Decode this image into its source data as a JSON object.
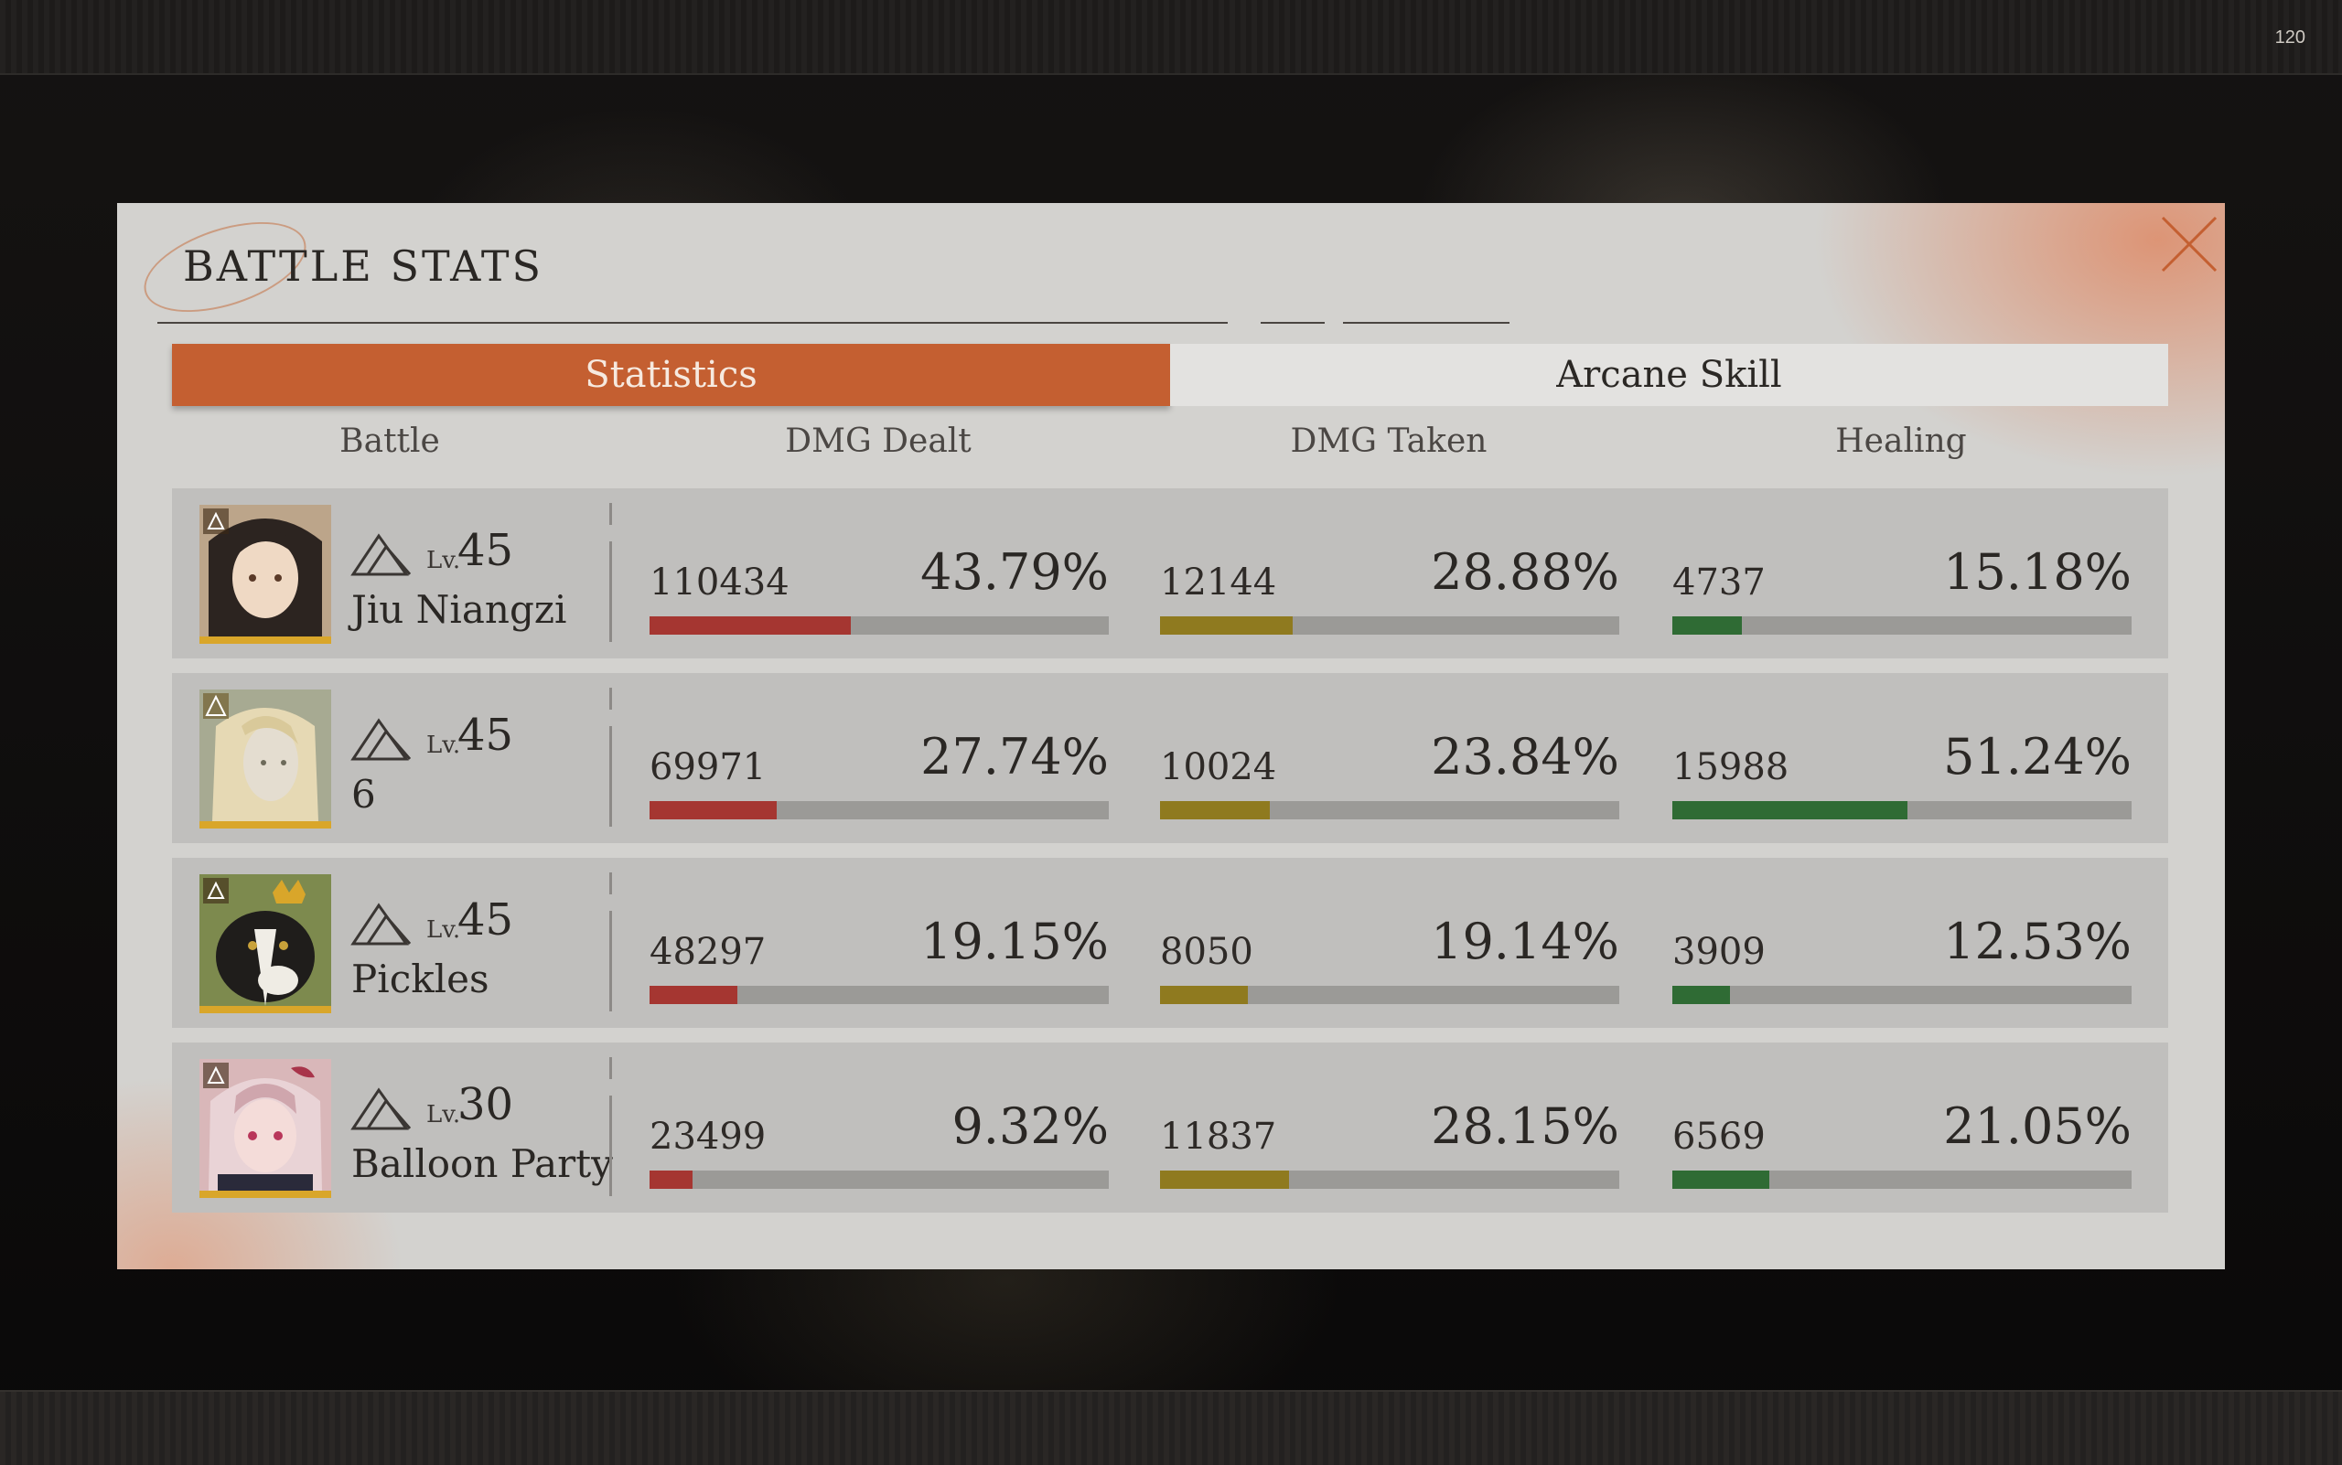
{
  "fps": "120",
  "panel": {
    "title": "BATTLE STATS"
  },
  "tabs": [
    {
      "label": "Statistics",
      "active": true
    },
    {
      "label": "Arcane Skill",
      "active": false
    }
  ],
  "columns": [
    "Battle",
    "DMG Dealt",
    "DMG Taken",
    "Healing"
  ],
  "level_prefix": "Lv.",
  "characters": [
    {
      "name": "Jiu Niangzi",
      "level": "45",
      "dmg_dealt": "110434",
      "dmg_dealt_pct": "43.79%",
      "dmg_taken": "12144",
      "dmg_taken_pct": "28.88%",
      "healing": "4737",
      "healing_pct": "15.18%",
      "avatar_icon": "portrait-dark-hair"
    },
    {
      "name": "6",
      "level": "45",
      "dmg_dealt": "69971",
      "dmg_dealt_pct": "27.74%",
      "dmg_taken": "10024",
      "dmg_taken_pct": "23.84%",
      "healing": "15988",
      "healing_pct": "51.24%",
      "avatar_icon": "portrait-blonde"
    },
    {
      "name": "Pickles",
      "level": "45",
      "dmg_dealt": "48297",
      "dmg_dealt_pct": "19.15%",
      "dmg_taken": "8050",
      "dmg_taken_pct": "19.14%",
      "healing": "3909",
      "healing_pct": "12.53%",
      "avatar_icon": "portrait-dog-crown"
    },
    {
      "name": "Balloon Party",
      "level": "30",
      "dmg_dealt": "23499",
      "dmg_dealt_pct": "9.32%",
      "dmg_taken": "11837",
      "dmg_taken_pct": "28.15%",
      "healing": "6569",
      "healing_pct": "21.05%",
      "avatar_icon": "portrait-pink-hair"
    }
  ],
  "colors": {
    "accent": "#c45f31",
    "dmg_dealt_bar": "#a53631",
    "dmg_taken_bar": "#8f7a1f",
    "healing_bar": "#2f6b34"
  }
}
